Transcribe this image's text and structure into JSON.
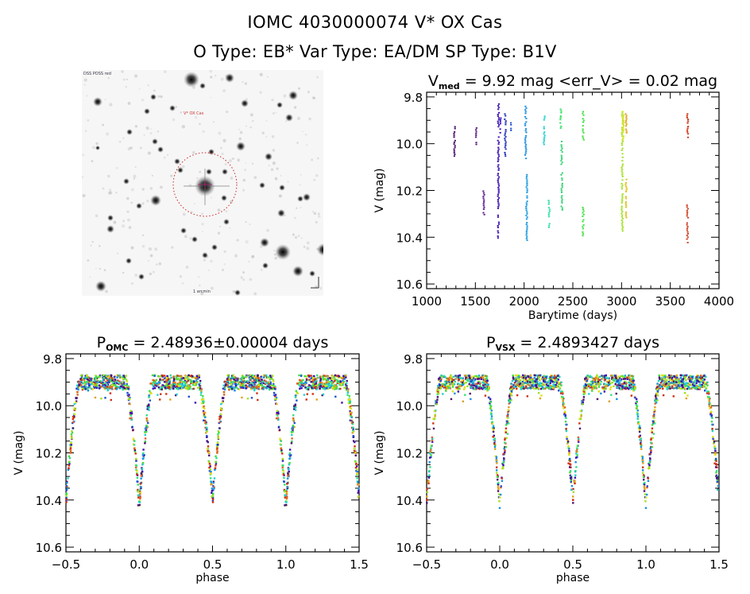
{
  "header": {
    "title": "IOMC 4030000074    V* OX Cas",
    "subtitle": "O Type: EB*   Var Type: EA/DM   SP Type: B1V"
  },
  "sky_image": {
    "description": "Finder chart, inverted grayscale star field centered on target",
    "target_marker": "red dashed circle with crosshair",
    "corner_labels": [
      "DSS POSS red",
      "V* OX Cas",
      "1 arcmin"
    ]
  },
  "colors": {
    "circle": "#cc2222",
    "axes": "#000000"
  },
  "chart_data": [
    {
      "id": "time-series",
      "type": "scatter",
      "title_main": "V",
      "title_sub": "med",
      "title_rest": " = 9.92 mag <err_V> = 0.02 mag",
      "xlabel": "Barytime (days)",
      "ylabel": "V (mag)",
      "xlim": [
        1000,
        4000
      ],
      "ylim": [
        10.62,
        9.78
      ],
      "xticks": [
        "1000",
        "1500",
        "2000",
        "2500",
        "3000",
        "3500",
        "4000"
      ],
      "xtick_values": [
        1000,
        1500,
        2000,
        2500,
        3000,
        3500,
        4000
      ],
      "yticks": [
        "9.8",
        "10.0",
        "10.2",
        "10.4",
        "10.6"
      ],
      "ytick_values": [
        9.8,
        10.0,
        10.2,
        10.4,
        10.6
      ],
      "segments": [
        {
          "x": 1280,
          "ymin": 9.91,
          "ymax": 10.05,
          "color": "#4a1070"
        },
        {
          "x": 1500,
          "ymin": 9.93,
          "ymax": 10.0,
          "color": "#521a80"
        },
        {
          "x": 1580,
          "ymin": 10.2,
          "ymax": 10.3,
          "color": "#5a1a90"
        },
        {
          "x": 1730,
          "ymin": 9.82,
          "ymax": 10.4,
          "color": "#3a10b0"
        },
        {
          "x": 1750,
          "ymin": 9.88,
          "ymax": 9.95,
          "color": "#3010c0"
        },
        {
          "x": 1800,
          "ymin": 9.87,
          "ymax": 10.05,
          "color": "#2030b8"
        },
        {
          "x": 1860,
          "ymin": 9.9,
          "ymax": 9.94,
          "color": "#2050d0"
        },
        {
          "x": 2010,
          "ymin": 9.83,
          "ymax": 10.06,
          "color": "#1a90e0"
        },
        {
          "x": 2020,
          "ymin": 10.13,
          "ymax": 10.41,
          "color": "#1a9ae0"
        },
        {
          "x": 2200,
          "ymin": 9.88,
          "ymax": 10.0,
          "color": "#20d0d0"
        },
        {
          "x": 2250,
          "ymin": 10.24,
          "ymax": 10.37,
          "color": "#30e0a0"
        },
        {
          "x": 2370,
          "ymin": 9.85,
          "ymax": 9.93,
          "color": "#30e060"
        },
        {
          "x": 2380,
          "ymin": 9.98,
          "ymax": 10.28,
          "color": "#30d070"
        },
        {
          "x": 2600,
          "ymin": 9.86,
          "ymax": 9.98,
          "color": "#40e040"
        },
        {
          "x": 2600,
          "ymin": 10.27,
          "ymax": 10.39,
          "color": "#40e040"
        },
        {
          "x": 3000,
          "ymin": 9.86,
          "ymax": 10.37,
          "color": "#a0e020"
        },
        {
          "x": 3010,
          "ymin": 9.86,
          "ymax": 9.98,
          "color": "#d8e010"
        },
        {
          "x": 3040,
          "ymin": 9.87,
          "ymax": 9.95,
          "color": "#e0a020"
        },
        {
          "x": 3040,
          "ymin": 10.15,
          "ymax": 10.32,
          "color": "#e0c020"
        },
        {
          "x": 3670,
          "ymin": 9.87,
          "ymax": 9.97,
          "color": "#d03010"
        },
        {
          "x": 3670,
          "ymin": 10.26,
          "ymax": 10.42,
          "color": "#d04020"
        }
      ]
    },
    {
      "id": "phase-omc",
      "type": "scatter",
      "title_main": "P",
      "title_sub": "OMC",
      "title_rest": " = 2.48936±0.00004 days",
      "period_days": 2.48936,
      "period_err_days": 4e-05,
      "xlabel": "phase",
      "ylabel": "V (mag)",
      "xlim": [
        -0.5,
        1.5
      ],
      "ylim": [
        10.62,
        9.78
      ],
      "xticks": [
        "−0.5",
        "0.0",
        "0.5",
        "1.0",
        "1.5"
      ],
      "xtick_values": [
        -0.5,
        0.0,
        0.5,
        1.0,
        1.5
      ],
      "yticks": [
        "9.8",
        "10.0",
        "10.2",
        "10.4",
        "10.6"
      ],
      "ytick_values": [
        9.8,
        10.0,
        10.2,
        10.4,
        10.6
      ],
      "light_curve": {
        "max_mag": 9.9,
        "primary_min_phase": 0.0,
        "primary_min_mag": 10.42,
        "secondary_min_phase": 0.5,
        "secondary_min_mag": 10.4,
        "eclipse_half_width_phase": 0.09
      }
    },
    {
      "id": "phase-vsx",
      "type": "scatter",
      "title_main": "P",
      "title_sub": "VSX",
      "title_rest": " = 2.4893427 days",
      "period_days": 2.4893427,
      "xlabel": "phase",
      "ylabel": "V (mag)",
      "xlim": [
        -0.5,
        1.5
      ],
      "ylim": [
        10.62,
        9.78
      ],
      "xticks": [
        "−0.5",
        "0.0",
        "0.5",
        "1.0",
        "1.5"
      ],
      "xtick_values": [
        -0.5,
        0.0,
        0.5,
        1.0,
        1.5
      ],
      "yticks": [
        "9.8",
        "10.0",
        "10.2",
        "10.4",
        "10.6"
      ],
      "ytick_values": [
        9.8,
        10.0,
        10.2,
        10.4,
        10.6
      ],
      "light_curve": {
        "max_mag": 9.9,
        "primary_min_phase": 0.0,
        "primary_min_mag": 10.42,
        "secondary_min_phase": 0.5,
        "secondary_min_mag": 10.4,
        "eclipse_half_width_phase": 0.09
      }
    }
  ],
  "season_colors": [
    "#4a1070",
    "#3a10b0",
    "#2050d0",
    "#1a90e0",
    "#20d0d0",
    "#30e080",
    "#40e040",
    "#a0e020",
    "#e0e010",
    "#e0a020",
    "#e06020",
    "#d03010"
  ]
}
